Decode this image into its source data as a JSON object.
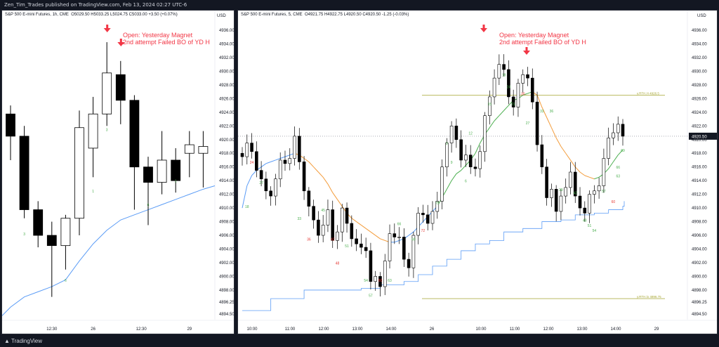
{
  "header": {
    "publisher": "Zen_Tim_Trades published on TradingView.com, Feb 13, 2024 02:27 UTC-6"
  },
  "footer": {
    "brand": "TradingView"
  },
  "colors": {
    "up": "#ffffff",
    "down": "#000000",
    "ema": "#5b9cf6",
    "ema_orange": "#f39c3b",
    "ema_green": "#4caf50",
    "level": "#a6a632",
    "arrow": "#f23645",
    "price_tag": "#131722"
  },
  "chart_data": [
    {
      "type": "candlestick",
      "title": "S&P 500 E-mini Futures, 1h, CME",
      "ohlc_text": "O5029.50 H5033.25 L5024.75 C5033.00 +3.50 (+0.07%)",
      "currency": "USD",
      "ylim": [
        4894.5,
        4936.0
      ],
      "yticks": [
        "4936.00",
        "4934.00",
        "4932.00",
        "4930.00",
        "4928.00",
        "4926.00",
        "4924.00",
        "4922.00",
        "4920.00",
        "4918.00",
        "4916.00",
        "4914.00",
        "4912.00",
        "4910.00",
        "4908.00",
        "4906.00",
        "4904.00",
        "4902.00",
        "4900.00",
        "4898.00",
        "4896.25",
        "4894.50"
      ],
      "xticks": [
        {
          "i": 3,
          "label": "12:30"
        },
        {
          "i": 6,
          "label": "26"
        },
        {
          "i": 9.5,
          "label": "12:30"
        },
        {
          "i": 13,
          "label": "29"
        }
      ],
      "annotation": "Open: Yesterday Magnet\n2nd attempt Failed BO of YD H",
      "arrows_at": [
        7,
        8
      ],
      "bars": [
        {
          "o": 4923.75,
          "h": 4925.0,
          "l": 4917.0,
          "c": 4920.5
        },
        {
          "o": 4920.5,
          "h": 4922.0,
          "l": 4908.5,
          "c": 4909.75
        },
        {
          "o": 4909.75,
          "h": 4911.0,
          "l": 4904.25,
          "c": 4906.0
        },
        {
          "o": 4906.0,
          "h": 4908.0,
          "l": 4897.0,
          "c": 4904.5
        },
        {
          "o": 4904.5,
          "h": 4909.0,
          "l": 4901.0,
          "c": 4908.5
        },
        {
          "o": 4908.5,
          "h": 4924.25,
          "l": 4906.0,
          "c": 4921.75
        },
        {
          "o": 4918.75,
          "h": 4926.25,
          "l": 4914.5,
          "c": 4923.75
        },
        {
          "o": 4923.75,
          "h": 4934.25,
          "l": 4922.0,
          "c": 4929.75
        },
        {
          "o": 4929.5,
          "h": 4931.5,
          "l": 4922.25,
          "c": 4925.75
        },
        {
          "o": 4925.75,
          "h": 4926.5,
          "l": 4909.75,
          "c": 4916.0
        },
        {
          "o": 4916.0,
          "h": 4917.5,
          "l": 4907.5,
          "c": 4913.75
        },
        {
          "o": 4913.75,
          "h": 4921.25,
          "l": 4912.0,
          "c": 4917.0
        },
        {
          "o": 4917.0,
          "h": 4918.75,
          "l": 4912.25,
          "c": 4914.0
        },
        {
          "o": 4918.0,
          "h": 4921.25,
          "l": 4914.5,
          "c": 4919.25
        },
        {
          "o": 4918.0,
          "h": 4921.25,
          "l": 4913.0,
          "c": 4919.0
        }
      ],
      "bar_labels": [
        {
          "i": 1,
          "t": "3",
          "y": 4906.0
        },
        {
          "i": 4,
          "t": "6",
          "y": 4899.25
        },
        {
          "i": 6,
          "t": "1",
          "y": 4912.25
        },
        {
          "i": 7,
          "t": "3",
          "y": 4921.25
        },
        {
          "i": 10,
          "t": "6",
          "y": 4910.25
        },
        {
          "i": 12,
          "t": "1",
          "y": 4913.75
        }
      ],
      "ema": [
        4895.5,
        4897.0,
        4897.75,
        4898.5,
        4899.5,
        4902.25,
        4904.75,
        4906.75,
        4908.25,
        4909.0,
        4909.75,
        4910.5,
        4911.25,
        4912.0,
        4912.75
      ]
    },
    {
      "type": "candlestick",
      "title": "S&P 500 E-mini Futures, 5, CME",
      "ohlc_text": "O4921.75 H4922.75 L4920.50 C4920.50 -1.25 (-0.03%)",
      "currency": "USD",
      "ylim": [
        4894.5,
        4936.0
      ],
      "yticks": [
        "4936.00",
        "4934.00",
        "4932.00",
        "4930.00",
        "4928.00",
        "4926.00",
        "4924.00",
        "4922.00",
        "4920.00",
        "4918.00",
        "4916.00",
        "4914.00",
        "4912.00",
        "4910.00",
        "4908.00",
        "4906.00",
        "4904.00",
        "4902.00",
        "4900.00",
        "4898.00",
        "4896.25",
        "4894.50"
      ],
      "last_price": "4920.50",
      "xticks": [
        "10:00",
        "11:00",
        "12:00",
        "13:00",
        "14:00",
        "26",
        "10:00",
        "11:00",
        "12:00",
        "13:00",
        "14:00",
        "29"
      ],
      "annotation": "Open: Yesterday Magnet\n2nd attempt Failed BO of YD H",
      "levels": [
        {
          "label": "y.RTH.H 4926.5",
          "value": 4926.5
        },
        {
          "label": "y.RTH.lo 4896.75",
          "value": 4896.75
        }
      ],
      "closes": [
        4917.5,
        4919.5,
        4918.25,
        4915.5,
        4914.25,
        4912.5,
        4911.75,
        4914.25,
        4917.0,
        4916.5,
        4917.25,
        4920.5,
        4916.75,
        4912.5,
        4910.25,
        4908.25,
        4906.0,
        4907.5,
        4909.75,
        4905.25,
        4906.5,
        4910.0,
        4907.75,
        4905.5,
        4904.75,
        4904.25,
        4903.75,
        4899.25,
        4900.0,
        4898.5,
        4902.25,
        4906.25,
        4905.75,
        4905.75,
        4902.5,
        4901.25,
        4906.0,
        4909.25,
        4909.0,
        4907.75,
        4909.5,
        4911.0,
        4916.0,
        4919.5,
        4922.0,
        4920.0,
        4917.0,
        4917.75,
        4916.0,
        4915.75,
        4918.25,
        4923.5,
        4926.25,
        4929.0,
        4931.0,
        4930.25,
        4926.25,
        4924.75,
        4928.25,
        4929.5,
        4929.0,
        4925.5,
        4919.25,
        4916.0,
        4911.5,
        4912.75,
        4909.5,
        4911.75,
        4913.0,
        4915.25,
        4911.75,
        4910.0,
        4909.25,
        4912.0,
        4912.5,
        4913.25,
        4917.25,
        4920.25,
        4921.0,
        4922.25,
        4920.5
      ],
      "bar_labels": [
        {
          "t": "18",
          "i": 1,
          "y": 4910.0
        },
        {
          "t": "27",
          "i": 4,
          "y": 4913.5
        },
        {
          "t": "24",
          "i": 2,
          "y": 4916.5
        },
        {
          "t": "33",
          "i": 12,
          "y": 4908.25
        },
        {
          "t": "36",
          "i": 14,
          "y": 4905.25
        },
        {
          "t": "45",
          "i": 17,
          "y": 4909.5
        },
        {
          "t": "42",
          "i": 19,
          "y": 4905.25
        },
        {
          "t": "51",
          "i": 22,
          "y": 4904.25
        },
        {
          "t": "48",
          "i": 20,
          "y": 4901.75
        },
        {
          "t": "54",
          "i": 26,
          "y": 4899.25
        },
        {
          "t": "57",
          "i": 27,
          "y": 4897.0
        },
        {
          "t": "60",
          "i": 29,
          "y": 4899.25
        },
        {
          "t": "63",
          "i": 31,
          "y": 4899.25
        },
        {
          "t": "66",
          "i": 33,
          "y": 4907.5
        },
        {
          "t": "69",
          "i": 36,
          "y": 4905.25
        },
        {
          "t": "72",
          "i": 38,
          "y": 4906.5
        },
        {
          "t": "75",
          "i": 41,
          "y": 4910.5
        },
        {
          "t": "3",
          "i": 43,
          "y": 4919.25
        },
        {
          "t": "6",
          "i": 47,
          "y": 4913.75
        },
        {
          "t": "9",
          "i": 44,
          "y": 4916.5
        },
        {
          "t": "12",
          "i": 48,
          "y": 4920.75
        },
        {
          "t": "15",
          "i": 52,
          "y": 4925.0
        },
        {
          "t": "18",
          "i": 55,
          "y": 4929.25
        },
        {
          "t": "21",
          "i": 57,
          "y": 4925.0
        },
        {
          "t": "24",
          "i": 56,
          "y": 4927.5
        },
        {
          "t": "27",
          "i": 60,
          "y": 4922.25
        },
        {
          "t": "30",
          "i": 59,
          "y": 4926.5
        },
        {
          "t": "33",
          "i": 63,
          "y": 4924.0
        },
        {
          "t": "36",
          "i": 65,
          "y": 4924.0
        },
        {
          "t": "39",
          "i": 67,
          "y": 4912.5
        },
        {
          "t": "42",
          "i": 70,
          "y": 4912.0
        },
        {
          "t": "48",
          "i": 72,
          "y": 4908.0
        },
        {
          "t": "51",
          "i": 73,
          "y": 4907.25
        },
        {
          "t": "54",
          "i": 74,
          "y": 4906.5
        },
        {
          "t": "57",
          "i": 76,
          "y": 4912.25
        },
        {
          "t": "60",
          "i": 78,
          "y": 4910.75
        },
        {
          "t": "63",
          "i": 79,
          "y": 4914.5
        },
        {
          "t": "66",
          "i": 79,
          "y": 4915.75
        },
        {
          "t": "69",
          "i": 80,
          "y": 4918.25
        }
      ],
      "step_line": [
        [
          0,
          4895.0
        ],
        [
          6,
          4896.75
        ],
        [
          13,
          4898.0
        ],
        [
          25,
          4898.25
        ],
        [
          29,
          4898.75
        ],
        [
          34,
          4899.25
        ],
        [
          37,
          4900.25
        ],
        [
          40,
          4901.5
        ],
        [
          43,
          4902.5
        ],
        [
          46,
          4903.75
        ],
        [
          49,
          4904.75
        ],
        [
          52,
          4905.25
        ],
        [
          55,
          4906.5
        ],
        [
          59,
          4907.0
        ],
        [
          63,
          4908.0
        ],
        [
          67,
          4908.25
        ],
        [
          70,
          4909.0
        ],
        [
          74,
          4909.25
        ],
        [
          77,
          4909.75
        ],
        [
          80,
          4910.25
        ]
      ],
      "ema": [
        4910.0,
        4913.25,
        4914.75,
        4915.5,
        4916.0,
        4916.5,
        4916.75,
        4917.0,
        4917.25,
        4917.5,
        4917.75,
        4918.0,
        4917.75,
        4917.25,
        4916.75,
        4916.0,
        4915.25,
        4914.5,
        4913.5,
        4912.25,
        4911.25,
        4910.25,
        4909.25,
        4908.5,
        4908.0,
        4907.5,
        4907.0,
        4906.5,
        4906.0,
        4905.5,
        4905.25,
        4905.0,
        4905.0,
        4905.25,
        4905.5,
        4906.0,
        4906.5,
        4907.25,
        4908.0,
        4908.75,
        4909.5,
        4910.25,
        4911.5,
        4912.75,
        4914.0,
        4915.0,
        4915.5,
        4916.25,
        4917.0,
        4918.0,
        4919.5,
        4920.75,
        4921.75,
        4922.75,
        4923.5,
        4924.25,
        4925.0,
        4925.75,
        4926.0,
        4926.5,
        4926.75,
        4927.0,
        4926.5,
        4924.75,
        4923.25,
        4921.75,
        4920.25,
        4919.0,
        4918.0,
        4917.0,
        4916.0,
        4915.25,
        4914.75,
        4914.5,
        4914.25,
        4914.5,
        4915.0,
        4915.75,
        4916.75,
        4917.75,
        4918.5
      ]
    }
  ]
}
